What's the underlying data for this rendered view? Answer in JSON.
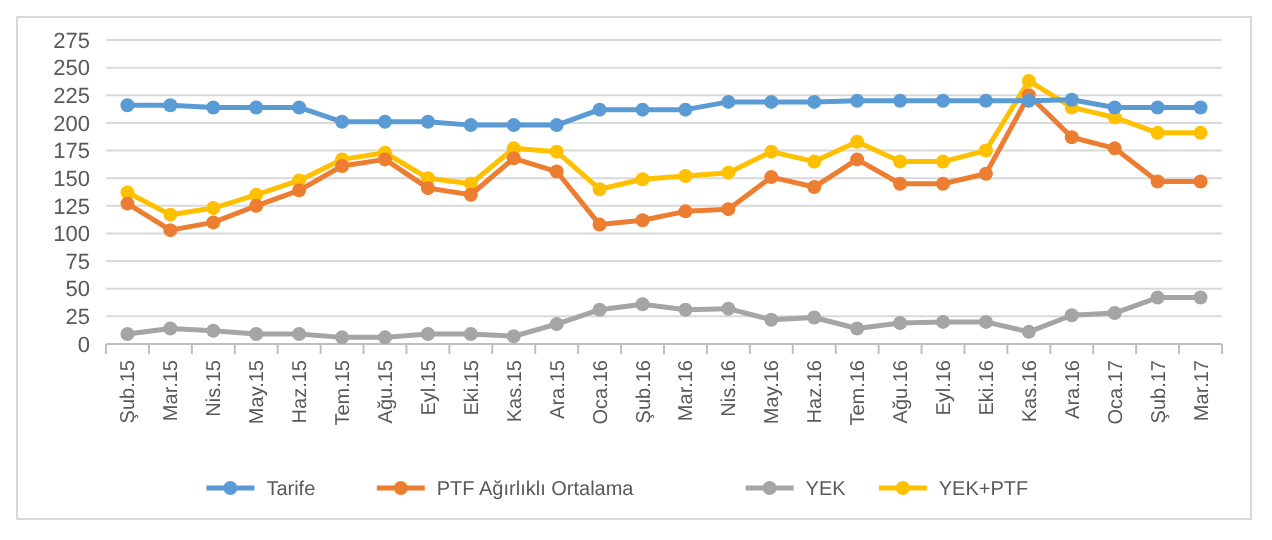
{
  "chart_data": {
    "type": "line",
    "categories": [
      "Şub.15",
      "Mar.15",
      "Nis.15",
      "May.15",
      "Haz.15",
      "Tem.15",
      "Ağu.15",
      "Eyl.15",
      "Eki.15",
      "Kas.15",
      "Ara.15",
      "Oca.16",
      "Şub.16",
      "Mar.16",
      "Nis.16",
      "May.16",
      "Haz.16",
      "Tem.16",
      "Ağu.16",
      "Eyl.16",
      "Eki.16",
      "Kas.16",
      "Ara.16",
      "Oca.17",
      "Şub.17",
      "Mar.17"
    ],
    "series": [
      {
        "name": "Tarife",
        "color": "#5b9bd5",
        "values": [
          216,
          216,
          214,
          214,
          214,
          201,
          201,
          201,
          198,
          198,
          198,
          212,
          212,
          212,
          219,
          219,
          219,
          220,
          220,
          220,
          220,
          220,
          221,
          214,
          214,
          214
        ]
      },
      {
        "name": "PTF Ağırlıklı Ortalama",
        "color": "#ed7d31",
        "values": [
          127,
          103,
          110,
          125,
          139,
          161,
          167,
          141,
          135,
          168,
          156,
          108,
          112,
          120,
          122,
          151,
          142,
          167,
          145,
          145,
          154,
          225,
          187,
          177,
          147,
          147
        ]
      },
      {
        "name": "YEK",
        "color": "#a5a5a5",
        "values": [
          9,
          14,
          12,
          9,
          9,
          6,
          6,
          9,
          9,
          7,
          18,
          31,
          36,
          31,
          32,
          22,
          24,
          14,
          19,
          20,
          20,
          11,
          26,
          28,
          42,
          42
        ]
      },
      {
        "name": "YEK+PTF",
        "color": "#ffc000",
        "values": [
          137,
          117,
          123,
          135,
          148,
          167,
          173,
          150,
          145,
          177,
          174,
          140,
          149,
          152,
          155,
          174,
          165,
          183,
          165,
          165,
          175,
          238,
          214,
          205,
          191,
          191
        ]
      }
    ],
    "ylim": [
      0,
      275
    ],
    "yticks": [
      0,
      25,
      50,
      75,
      100,
      125,
      150,
      175,
      200,
      225,
      250,
      275
    ],
    "grid": "y",
    "legend": "bottom",
    "marker": "circle",
    "line_style": "solid"
  }
}
